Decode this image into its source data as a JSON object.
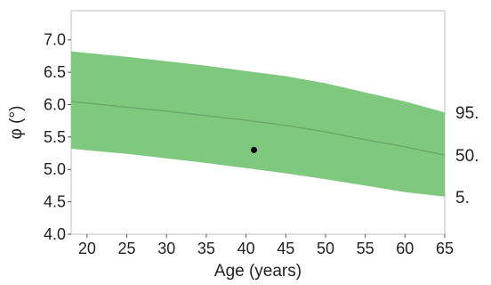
{
  "chart_data": {
    "type": "area",
    "title": "",
    "xlabel": "Age (years)",
    "ylabel": "φ (°)",
    "xlim": [
      18,
      65
    ],
    "ylim": [
      4.0,
      7.45
    ],
    "xticks": [
      "20",
      "25",
      "30",
      "35",
      "40",
      "45",
      "50",
      "55",
      "60",
      "65"
    ],
    "yticks": [
      "4.0",
      "4.5",
      "5.0",
      "5.5",
      "6.0",
      "6.5",
      "7.0"
    ],
    "grid": false,
    "band_color": "#7fc97f",
    "median_color": "#6aaa6a",
    "point_color": "#000000",
    "series": [
      {
        "name": "95.",
        "x": [
          18,
          25,
          30,
          35,
          40,
          45,
          50,
          55,
          60,
          65
        ],
        "y": [
          6.82,
          6.74,
          6.67,
          6.6,
          6.52,
          6.44,
          6.33,
          6.19,
          6.05,
          5.88
        ]
      },
      {
        "name": "50.",
        "x": [
          18,
          25,
          30,
          35,
          40,
          45,
          50,
          55,
          60,
          65
        ],
        "y": [
          6.05,
          5.96,
          5.9,
          5.83,
          5.76,
          5.68,
          5.58,
          5.46,
          5.35,
          5.22
        ]
      },
      {
        "name": "5.",
        "x": [
          18,
          25,
          30,
          35,
          40,
          45,
          50,
          55,
          60,
          65
        ],
        "y": [
          5.32,
          5.24,
          5.17,
          5.1,
          5.02,
          4.94,
          4.85,
          4.75,
          4.65,
          4.58
        ]
      }
    ],
    "points": [
      {
        "x": 41,
        "y": 5.3
      }
    ]
  }
}
